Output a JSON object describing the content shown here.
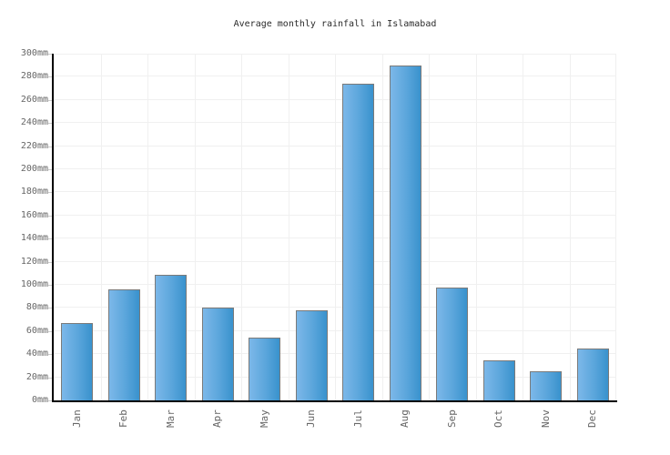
{
  "title": "Average monthly rainfall in Islamabad",
  "chart_data": {
    "type": "bar",
    "title": "Average monthly rainfall in Islamabad",
    "categories": [
      "Jan",
      "Feb",
      "Mar",
      "Apr",
      "May",
      "Jun",
      "Jul",
      "Aug",
      "Sep",
      "Oct",
      "Nov",
      "Dec"
    ],
    "values": [
      67,
      96,
      109,
      80,
      54,
      78,
      274,
      290,
      98,
      35,
      25,
      45
    ],
    "unit": "mm",
    "xlabel": "",
    "ylabel": "",
    "ylim": [
      0,
      300
    ],
    "ytick_step": 20,
    "ytick_suffix": "mm",
    "grid": true,
    "legend_position": "none",
    "colors": {
      "bar_gradient_left": "#7cb8e9",
      "bar_gradient_right": "#3992cd",
      "bar_border": "#7a7a7a",
      "gridline": "#f0f0f0",
      "axis": "#000000",
      "title_text": "#2b2b2b",
      "tick_text": "#666666",
      "background": "#ffffff"
    }
  }
}
